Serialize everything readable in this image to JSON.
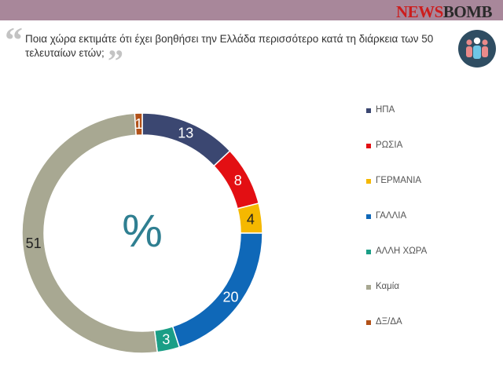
{
  "brand": {
    "part1": "NEWS",
    "part2": "BOMB"
  },
  "question": "Ποια χώρα εκτιμάτε ότι έχει βοηθήσει την Ελλάδα περισσότερο κατά τη διάρκεια των 50 τελευταίων ετών;",
  "quote_open": "“",
  "quote_close": "”",
  "icon": "people-group-icon",
  "chart_data": {
    "type": "pie",
    "variant": "donut",
    "title": "Ποια χώρα εκτιμάτε ότι έχει βοηθήσει την Ελλάδα περισσότερο κατά τη διάρκεια των 50 τελευταίων ετών;",
    "center_label": "%",
    "legend_position": "right",
    "unit": "%",
    "categories": [
      "ΗΠΑ",
      "ΡΩΣΙΑ",
      "ΓΕΡΜΑΝΙΑ",
      "ΓΑΛΛΙΑ",
      "ΑΛΛΗ ΧΩΡΑ",
      "Καμία",
      "ΔΞ/ΔΑ"
    ],
    "values": [
      13,
      8,
      4,
      20,
      3,
      51,
      1
    ],
    "colors": [
      "#3b4771",
      "#e30f13",
      "#f5b800",
      "#0f68b8",
      "#1a9e86",
      "#a8a892",
      "#b25118"
    ],
    "label_colors": [
      "#ffffff",
      "#ffffff",
      "#222222",
      "#ffffff",
      "#ffffff",
      "#222222",
      "#ffffff"
    ]
  }
}
